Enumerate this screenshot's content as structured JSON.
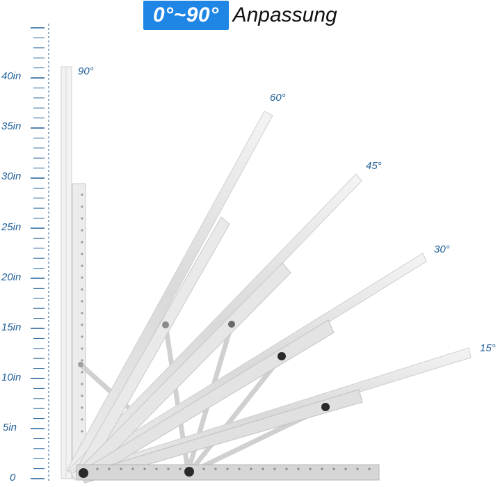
{
  "title": {
    "badge": "0°~90°",
    "text": "Anpassung",
    "badge_color": "#1f86e6"
  },
  "ruler": {
    "color": "#1f5f97",
    "labels": [
      "0",
      "5in",
      "10in",
      "15in",
      "20in",
      "25in",
      "30in",
      "35in",
      "40in"
    ]
  },
  "angles": [
    "90°",
    "60°",
    "45°",
    "30°",
    "15°"
  ]
}
